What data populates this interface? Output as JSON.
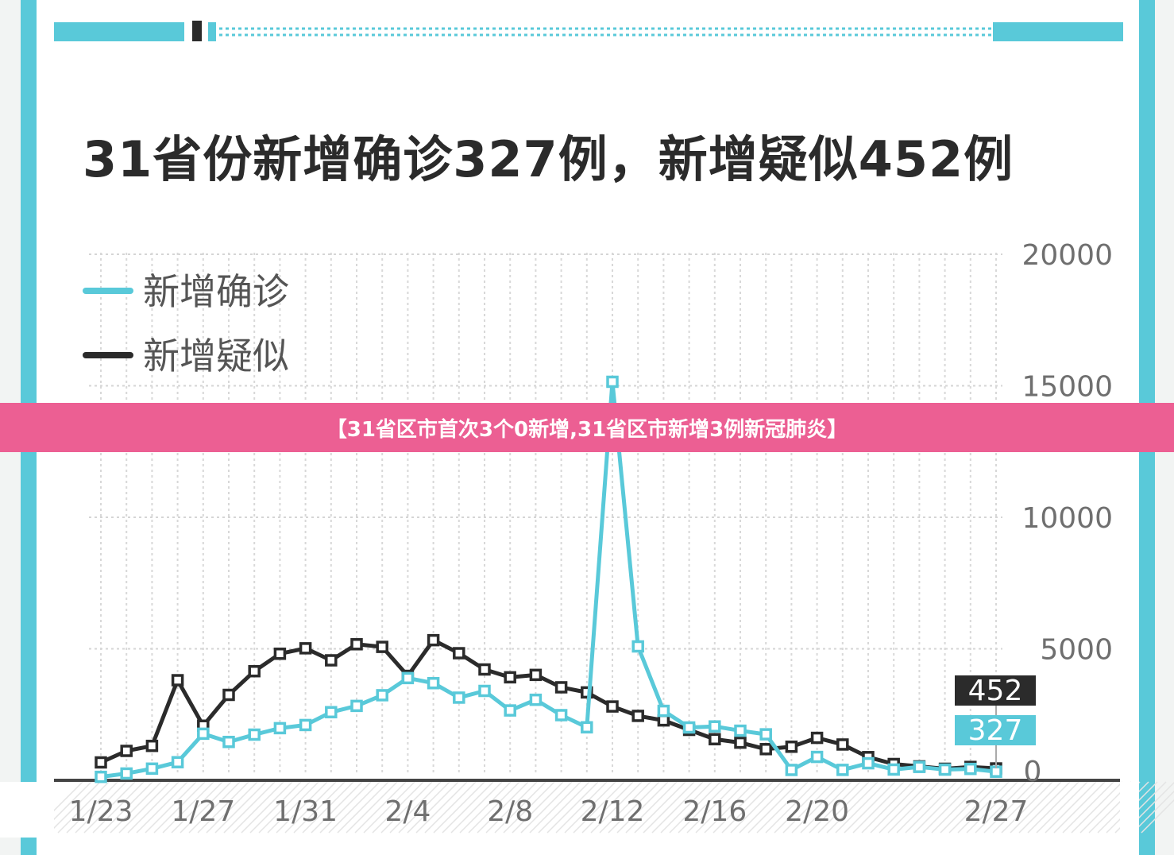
{
  "title": "31省份新增确诊327例，新增疑似452例",
  "banner": "【31省区市首次3个0新增,31省区市新增3例新冠肺炎】",
  "colors": {
    "confirmed": "#59c9d9",
    "suspected": "#2b2b2b",
    "banner": "#ec5f93",
    "frame": "#59c9d9"
  },
  "chart_data": {
    "type": "line",
    "title": "31省份新增确诊327例，新增疑似452例",
    "x": [
      "1/23",
      "1/24",
      "1/25",
      "1/26",
      "1/27",
      "1/28",
      "1/29",
      "1/30",
      "1/31",
      "2/1",
      "2/2",
      "2/3",
      "2/4",
      "2/5",
      "2/6",
      "2/7",
      "2/8",
      "2/9",
      "2/10",
      "2/11",
      "2/12",
      "2/13",
      "2/14",
      "2/15",
      "2/16",
      "2/17",
      "2/18",
      "2/19",
      "2/20",
      "2/21",
      "2/22",
      "2/23",
      "2/24",
      "2/25",
      "2/26",
      "2/27"
    ],
    "x_tick_labels": [
      "1/23",
      "1/27",
      "1/31",
      "2/4",
      "2/8",
      "2/12",
      "2/16",
      "2/20",
      "2/27"
    ],
    "y_ticks": [
      "0",
      "5000",
      "10000",
      "15000",
      "20000"
    ],
    "ylim": [
      0,
      20000
    ],
    "grid": true,
    "legend_position": "top-left",
    "series": [
      {
        "name": "新增确诊",
        "color": "#59c9d9",
        "values": [
          131,
          259,
          444,
          688,
          1771,
          1459,
          1737,
          1982,
          2102,
          2590,
          2829,
          3235,
          3887,
          3694,
          3143,
          3399,
          2656,
          3062,
          2478,
          2015,
          15152,
          5090,
          2641,
          2009,
          2048,
          1886,
          1749,
          394,
          889,
          397,
          648,
          409,
          508,
          406,
          433,
          327
        ]
      },
      {
        "name": "新增疑似",
        "color": "#2b2b2b",
        "values": [
          680,
          1118,
          1309,
          3806,
          2077,
          3248,
          4148,
          4812,
          5019,
          4562,
          5173,
          5072,
          3971,
          5328,
          4833,
          4214,
          3916,
          4008,
          3536,
          3342,
          2807,
          2450,
          2277,
          1918,
          1563,
          1432,
          1185,
          1277,
          1614,
          1361,
          882,
          620,
          530,
          439,
          508,
          452
        ]
      }
    ],
    "annotations": [
      {
        "text": "452",
        "series": "新增疑似"
      },
      {
        "text": "327",
        "series": "新增确诊"
      }
    ]
  }
}
